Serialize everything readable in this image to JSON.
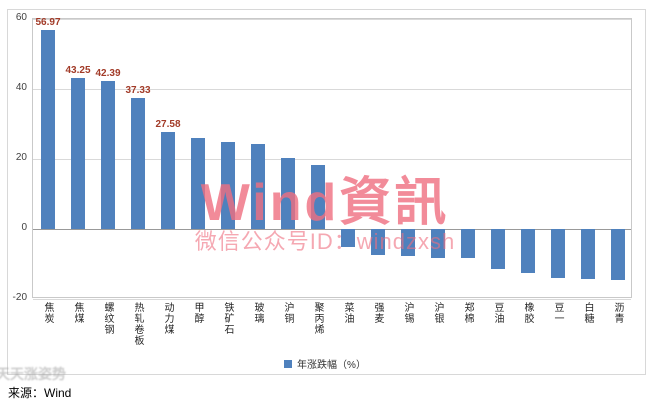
{
  "chart_data": {
    "type": "bar",
    "title": "",
    "categories": [
      "焦炭",
      "焦煤",
      "螺纹钢",
      "热轧卷板",
      "动力煤",
      "甲醇",
      "铁矿石",
      "玻璃",
      "沪铜",
      "聚丙烯",
      "菜油",
      "强麦",
      "沪锡",
      "沪银",
      "郑棉",
      "豆油",
      "橡胶",
      "豆一",
      "白糖",
      "沥青"
    ],
    "values": [
      56.97,
      43.25,
      42.39,
      37.33,
      27.58,
      26.1,
      24.8,
      24.4,
      20.4,
      18.2,
      -5.2,
      -7.3,
      -7.6,
      -8.2,
      -8.4,
      -11.3,
      -12.6,
      -13.9,
      -14.3,
      -14.6
    ],
    "value_labels": [
      "56.97",
      "43.25",
      "42.39",
      "37.33",
      "27.58"
    ],
    "xlabel": "",
    "ylabel": "",
    "ylim": [
      -20,
      60
    ],
    "yticks": [
      60,
      40,
      20,
      0,
      -20
    ],
    "grid": true,
    "legend": [
      "年涨跌幅（%）"
    ],
    "legend_position": "bottom"
  },
  "watermark": {
    "title": "Wind資訊",
    "subtitle": "微信公众号ID：windzxsh"
  },
  "corner_watermark": "天天涨姿势",
  "source": "来源：Wind",
  "colors": {
    "bar": "#4f81bd",
    "value_label": "#a23b28",
    "gridline": "#d9d9d9",
    "zero_line": "#999999",
    "axis_text": "#404040",
    "watermark": "#ef6f80",
    "frame": "#d8d8d8"
  }
}
